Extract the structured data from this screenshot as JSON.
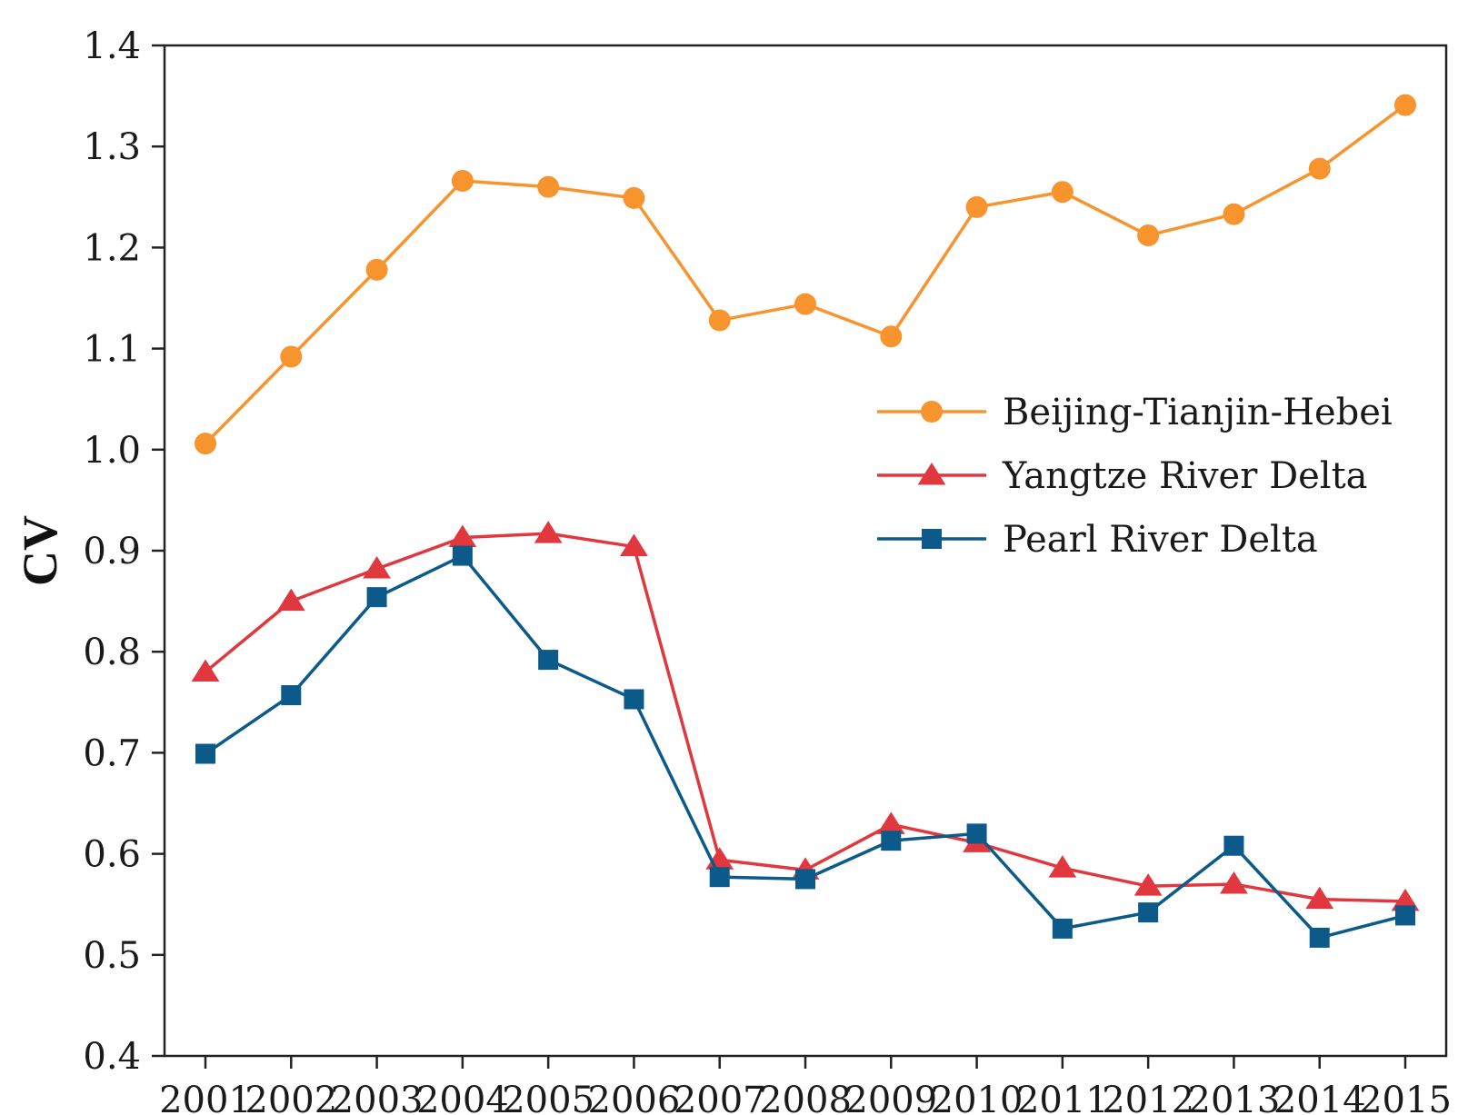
{
  "chart_data": {
    "type": "line",
    "title": "",
    "xlabel": "",
    "ylabel": "CV",
    "x": [
      2001,
      2002,
      2003,
      2004,
      2005,
      2006,
      2007,
      2008,
      2009,
      2010,
      2011,
      2012,
      2013,
      2014,
      2015
    ],
    "x_tick_labels": [
      "2001",
      "2002",
      "2003",
      "2004",
      "2005",
      "2006",
      "2007",
      "2008",
      "2009",
      "2010",
      "2011",
      "2012",
      "2013",
      "2014",
      "2015"
    ],
    "ylim": [
      0.4,
      1.4
    ],
    "y_ticks": [
      0.4,
      0.5,
      0.6,
      0.7,
      0.8,
      0.9,
      1.0,
      1.1,
      1.2,
      1.3,
      1.4
    ],
    "y_tick_labels": [
      "0.4",
      "0.5",
      "0.6",
      "0.7",
      "0.8",
      "0.9",
      "1.0",
      "1.1",
      "1.2",
      "1.3",
      "1.4"
    ],
    "grid": false,
    "legend_position": "right",
    "series": [
      {
        "name": "Beijing-Tianjin-Hebei",
        "marker": "circle",
        "color": "#F7942E",
        "values": [
          1.006,
          1.092,
          1.178,
          1.266,
          1.26,
          1.249,
          1.128,
          1.144,
          1.112,
          1.24,
          1.255,
          1.212,
          1.233,
          1.278,
          1.341
        ]
      },
      {
        "name": "Yangtze River Delta",
        "marker": "triangle",
        "color": "#E0383E",
        "values": [
          0.78,
          0.85,
          0.882,
          0.913,
          0.917,
          0.904,
          0.594,
          0.584,
          0.629,
          0.611,
          0.586,
          0.568,
          0.57,
          0.555,
          0.553
        ]
      },
      {
        "name": "Pearl River Delta",
        "marker": "square",
        "color": "#0C5A8A",
        "values": [
          0.699,
          0.757,
          0.854,
          0.895,
          0.792,
          0.753,
          0.577,
          0.575,
          0.613,
          0.62,
          0.526,
          0.542,
          0.608,
          0.517,
          0.539
        ]
      }
    ]
  }
}
